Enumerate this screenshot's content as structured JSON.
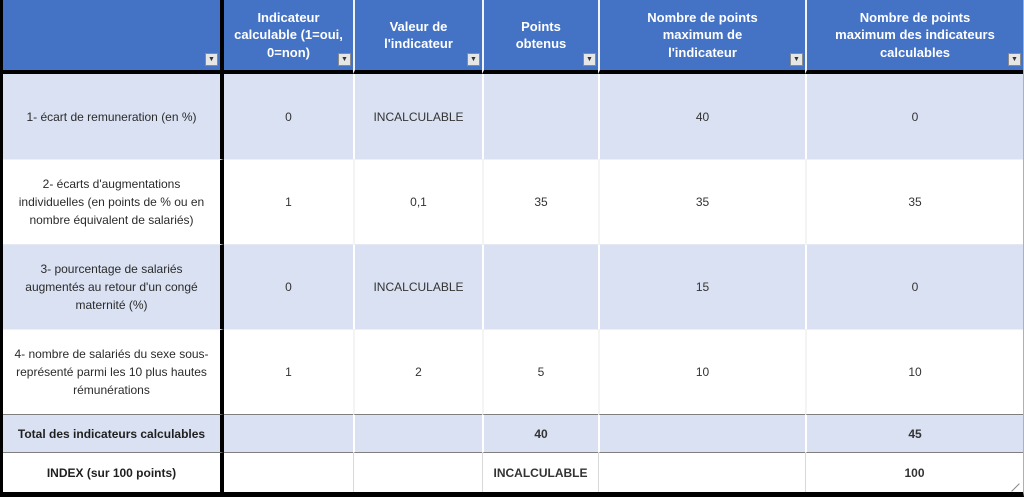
{
  "colors": {
    "header_bg": "#4472C4",
    "banded_row_bg": "#D9E1F2",
    "heavy_border": "#000000",
    "header_text": "#FFFFFF"
  },
  "icons": {
    "filter_glyph": "▼"
  },
  "table": {
    "columns": [
      {
        "label": ""
      },
      {
        "label": "Indicateur calculable (1=oui, 0=non)"
      },
      {
        "label": "Valeur de l'indicateur"
      },
      {
        "label": "Points obtenus"
      },
      {
        "label": "Nombre de points maximum de l'indicateur"
      },
      {
        "label": "Nombre de points maximum des indicateurs calculables"
      }
    ],
    "rows": [
      {
        "label": "1- écart de remuneration (en %)",
        "calculable": "0",
        "valeur": "INCALCULABLE",
        "points": "",
        "max_indicateur": "40",
        "max_calculables": "0"
      },
      {
        "label": "2- écarts d'augmentations individuelles (en points de % ou en nombre équivalent de salariés)",
        "calculable": "1",
        "valeur": "0,1",
        "points": "35",
        "max_indicateur": "35",
        "max_calculables": "35"
      },
      {
        "label": "3- pourcentage de salariés augmentés au retour d'un congé maternité (%)",
        "calculable": "0",
        "valeur": "INCALCULABLE",
        "points": "",
        "max_indicateur": "15",
        "max_calculables": "0"
      },
      {
        "label": "4- nombre de salariés du sexe sous-représenté parmi les 10 plus hautes rémunérations",
        "calculable": "1",
        "valeur": "2",
        "points": "5",
        "max_indicateur": "10",
        "max_calculables": "10"
      }
    ],
    "total_row": {
      "label": "Total des indicateurs calculables",
      "calculable": "",
      "valeur": "",
      "points": "40",
      "max_indicateur": "",
      "max_calculables": "45"
    },
    "index_row": {
      "label": "INDEX (sur 100 points)",
      "calculable": "",
      "valeur": "",
      "points": "INCALCULABLE",
      "max_indicateur": "",
      "max_calculables": "100"
    }
  }
}
